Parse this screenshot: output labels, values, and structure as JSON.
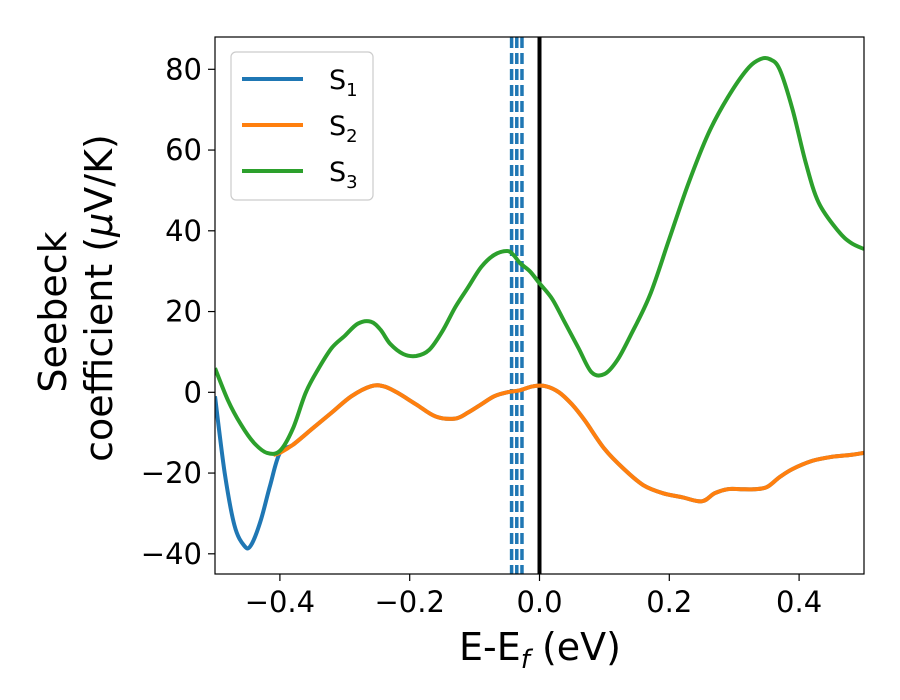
{
  "chart_data": {
    "type": "line",
    "xlabel": {
      "main": "E-E",
      "sub": "f",
      "tail": " (eV)"
    },
    "ylabel": {
      "line1": "Seebeck",
      "line2_prefix": "coefficient  (",
      "mu": "μ",
      "line2_suffix": "V/K)"
    },
    "xlim": [
      -0.5,
      0.5
    ],
    "ylim": [
      -45,
      88
    ],
    "xticks": [
      -0.4,
      -0.2,
      0.0,
      0.2,
      0.4
    ],
    "xtick_labels": [
      "−0.4",
      "−0.2",
      "0.0",
      "0.2",
      "0.4"
    ],
    "yticks": [
      -40,
      -20,
      0,
      20,
      40,
      60,
      80
    ],
    "ytick_labels": [
      "−40",
      "−20",
      "0",
      "20",
      "40",
      "60",
      "80"
    ],
    "legend_position": "top-left",
    "grid": false,
    "vertical_lines": [
      {
        "x": -0.043,
        "style": "dashed",
        "color": "#1f77b4"
      },
      {
        "x": -0.035,
        "style": "dashed",
        "color": "#1f77b4"
      },
      {
        "x": -0.027,
        "style": "dashed",
        "color": "#1f77b4"
      },
      {
        "x": 0.0,
        "style": "solid",
        "color": "#000000"
      }
    ],
    "series": [
      {
        "name": "S",
        "sub": "1",
        "color": "#1f77b4",
        "x": [
          -0.5,
          -0.485,
          -0.47,
          -0.455,
          -0.445,
          -0.43,
          -0.415,
          -0.4,
          -0.38,
          -0.35,
          -0.32,
          -0.29,
          -0.26,
          -0.24,
          -0.22,
          -0.19,
          -0.16,
          -0.13,
          -0.11,
          -0.09,
          -0.07,
          -0.05,
          -0.03,
          -0.01,
          0.01,
          0.03,
          0.05,
          0.07,
          0.1,
          0.13,
          0.16,
          0.19,
          0.22,
          0.25,
          0.27,
          0.29,
          0.31,
          0.33,
          0.35,
          0.37,
          0.39,
          0.42,
          0.45,
          0.48,
          0.5
        ],
        "y": [
          -1,
          -20,
          -33,
          -38,
          -38,
          -32,
          -23,
          -15,
          -13,
          -9,
          -5,
          -1,
          1.5,
          1.5,
          0,
          -3,
          -6,
          -6.5,
          -5,
          -3,
          -1,
          0,
          0.5,
          1.5,
          1.5,
          0,
          -3,
          -7,
          -14,
          -19,
          -23,
          -25,
          -26,
          -27,
          -25,
          -24,
          -24,
          -24,
          -23.5,
          -21,
          -19,
          -17,
          -16,
          -15.5,
          -15
        ]
      },
      {
        "name": "S",
        "sub": "2",
        "color": "#ff7f0e",
        "x": [
          -0.41,
          -0.4,
          -0.38,
          -0.35,
          -0.32,
          -0.29,
          -0.26,
          -0.24,
          -0.22,
          -0.19,
          -0.16,
          -0.13,
          -0.11,
          -0.09,
          -0.07,
          -0.05,
          -0.03,
          -0.01,
          0.01,
          0.03,
          0.05,
          0.07,
          0.1,
          0.13,
          0.16,
          0.19,
          0.22,
          0.25,
          0.27,
          0.29,
          0.31,
          0.33,
          0.35,
          0.37,
          0.39,
          0.42,
          0.45,
          0.48,
          0.5
        ],
        "y": [
          -15.5,
          -15,
          -13,
          -9,
          -5,
          -1,
          1.5,
          1.5,
          0,
          -3,
          -6,
          -6.5,
          -5,
          -3,
          -1,
          0,
          0.5,
          1.5,
          1.5,
          0,
          -3,
          -7,
          -14,
          -19,
          -23,
          -25,
          -26,
          -27,
          -25,
          -24,
          -24,
          -24,
          -23.5,
          -21,
          -19,
          -17,
          -16,
          -15.5,
          -15
        ]
      },
      {
        "name": "S",
        "sub": "3",
        "color": "#2ca02c",
        "x": [
          -0.5,
          -0.48,
          -0.46,
          -0.44,
          -0.42,
          -0.4,
          -0.38,
          -0.36,
          -0.34,
          -0.32,
          -0.3,
          -0.28,
          -0.26,
          -0.245,
          -0.23,
          -0.21,
          -0.19,
          -0.17,
          -0.15,
          -0.13,
          -0.11,
          -0.09,
          -0.07,
          -0.05,
          -0.04,
          -0.03,
          -0.015,
          0.0,
          0.02,
          0.04,
          0.06,
          0.08,
          0.1,
          0.12,
          0.14,
          0.17,
          0.2,
          0.23,
          0.26,
          0.29,
          0.32,
          0.34,
          0.355,
          0.37,
          0.39,
          0.41,
          0.43,
          0.46,
          0.48,
          0.5
        ],
        "y": [
          6,
          -2,
          -8,
          -12.5,
          -15,
          -14.5,
          -9,
          0,
          6,
          11,
          14,
          17,
          17.5,
          15.5,
          12,
          9.5,
          9,
          10.5,
          15,
          21,
          26,
          31,
          34,
          35,
          34,
          32,
          30,
          27,
          23,
          17,
          11,
          5,
          4.5,
          8,
          14,
          24,
          38,
          52,
          64,
          73,
          80,
          82.5,
          82.5,
          80,
          70,
          57,
          47,
          40,
          37,
          35.5
        ]
      }
    ]
  }
}
